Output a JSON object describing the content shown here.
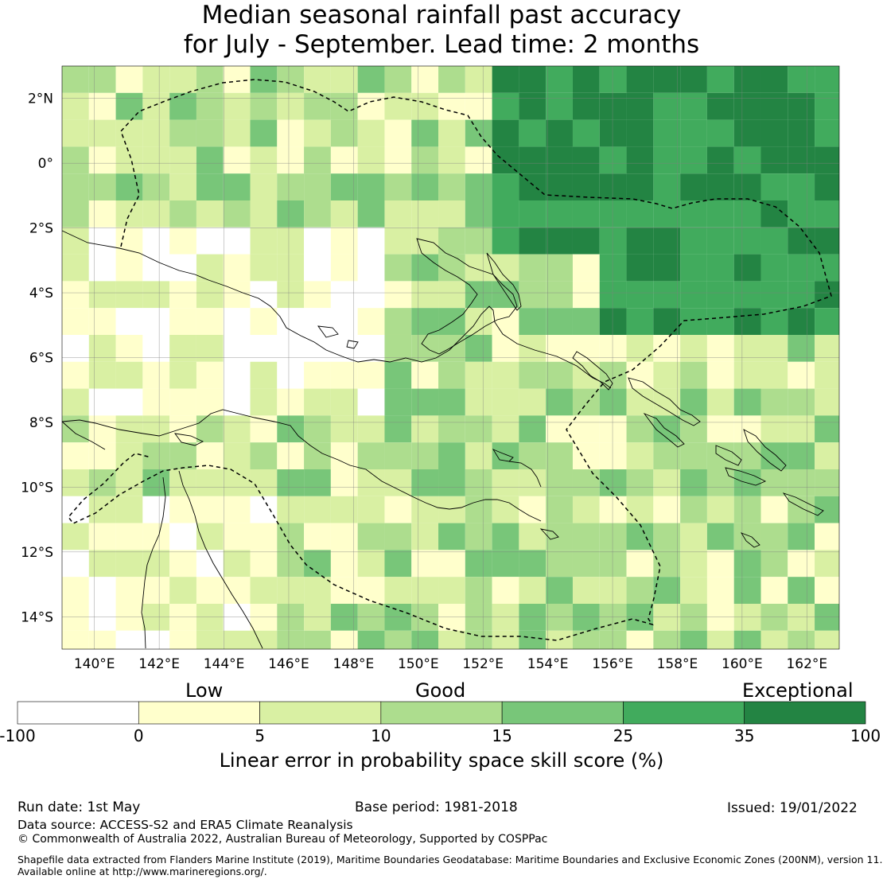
{
  "title": {
    "line1": "Median seasonal rainfall past accuracy",
    "line2": "for July - September. Lead time: 2 months"
  },
  "map": {
    "lat_labels": [
      "2°N",
      "0°",
      "2°S",
      "4°S",
      "6°S",
      "8°S",
      "10°S",
      "12°S",
      "14°S"
    ],
    "lon_labels": [
      "140°E",
      "142°E",
      "144°E",
      "146°E",
      "148°E",
      "150°E",
      "152°E",
      "154°E",
      "156°E",
      "158°E",
      "160°E",
      "162°E"
    ],
    "lat_range": [
      -15,
      3
    ],
    "lon_range": [
      139,
      163
    ],
    "grid_cell_deg": 0.83
  },
  "legend": {
    "words": {
      "low": "Low",
      "good": "Good",
      "exceptional": "Exceptional"
    },
    "ticks": [
      "-100",
      "0",
      "5",
      "10",
      "15",
      "25",
      "35",
      "100"
    ],
    "bins": [
      {
        "range": "-100 to 0",
        "color": "#ffffff"
      },
      {
        "range": "0 to 5",
        "color": "#ffffcc"
      },
      {
        "range": "5 to 10",
        "color": "#d9f0a3"
      },
      {
        "range": "10 to 15",
        "color": "#addd8e"
      },
      {
        "range": "15 to 25",
        "color": "#78c679"
      },
      {
        "range": "25 to 35",
        "color": "#41ab5d"
      },
      {
        "range": "35 to 100",
        "color": "#238443"
      }
    ],
    "caption": "Linear error in probability space skill score (%)"
  },
  "footer": {
    "run_date": "Run date: 1st May",
    "base_period": "Base period: 1981-2018",
    "issued": "Issued: 19/01/2022",
    "data_source": "Data source: ACCESS-S2 and ERA5 Climate Reanalysis",
    "copyright": "© Commonwealth of Australia 2022, Australian Bureau of Meteorology, Supported by COSPPac",
    "shapefile_line1": "Shapefile data extracted from Flanders Marine Institute (2019), Maritime Boundaries Geodatabase: Maritime Boundaries and Exclusive Economic Zones (200NM), version 11.",
    "shapefile_line2": "Available online at http://www.marineregions.org/."
  }
}
